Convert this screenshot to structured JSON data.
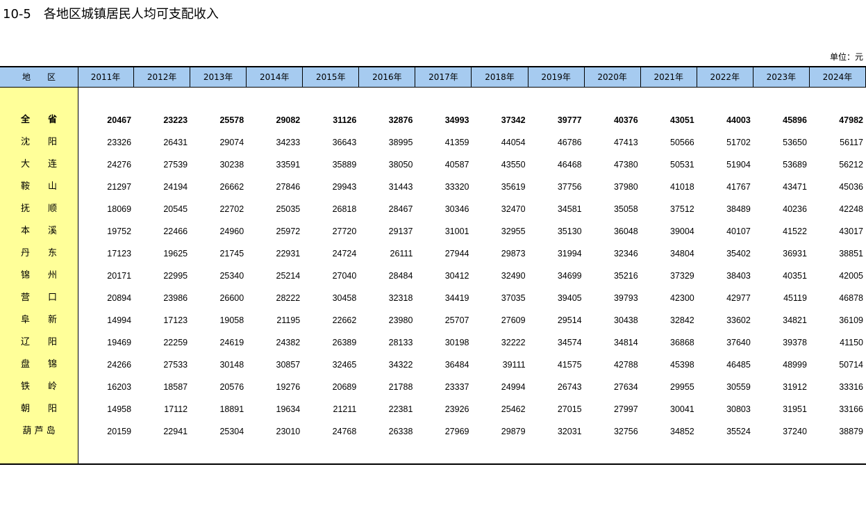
{
  "title": "10-5　各地区城镇居民人均可支配收入",
  "unit": "单位：元",
  "table": {
    "header": [
      "地　　区",
      "2011年",
      "2012年",
      "2013年",
      "2014年",
      "2015年",
      "2016年",
      "2017年",
      "2018年",
      "2019年",
      "2020年",
      "2021年",
      "2022年",
      "2023年",
      "2024年"
    ],
    "rows": [
      {
        "region": "全　　省",
        "values": [
          20467,
          23223,
          25578,
          29082,
          31126,
          32876,
          34993,
          37342,
          39777,
          40376,
          43051,
          44003,
          45896,
          47982
        ]
      },
      {
        "region": "沈　　阳",
        "values": [
          23326,
          26431,
          29074,
          34233,
          36643,
          38995,
          41359,
          44054,
          46786,
          47413,
          50566,
          51702,
          53650,
          56117
        ]
      },
      {
        "region": "大　　连",
        "values": [
          24276,
          27539,
          30238,
          33591,
          35889,
          38050,
          40587,
          43550,
          46468,
          47380,
          50531,
          51904,
          53689,
          56212
        ]
      },
      {
        "region": "鞍　　山",
        "values": [
          21297,
          24194,
          26662,
          27846,
          29943,
          31443,
          33320,
          35619,
          37756,
          37980,
          41018,
          41767,
          43471,
          45036
        ]
      },
      {
        "region": "抚　　顺",
        "values": [
          18069,
          20545,
          22702,
          25035,
          26818,
          28467,
          30346,
          32470,
          34581,
          35058,
          37512,
          38489,
          40236,
          42248
        ]
      },
      {
        "region": "本　　溪",
        "values": [
          19752,
          22466,
          24960,
          25972,
          27720,
          29137,
          31001,
          32955,
          35130,
          36048,
          39004,
          40107,
          41522,
          43017
        ]
      },
      {
        "region": "丹　　东",
        "values": [
          17123,
          19625,
          21745,
          22931,
          24724,
          26111,
          27944,
          29873,
          31994,
          32346,
          34804,
          35402,
          36931,
          38851
        ]
      },
      {
        "region": "锦　　州",
        "values": [
          20171,
          22995,
          25340,
          25214,
          27040,
          28484,
          30412,
          32490,
          34699,
          35216,
          37329,
          38403,
          40351,
          42005
        ]
      },
      {
        "region": "营　　口",
        "values": [
          20894,
          23986,
          26600,
          28222,
          30458,
          32318,
          34419,
          37035,
          39405,
          39793,
          42300,
          42977,
          45119,
          46878
        ]
      },
      {
        "region": "阜　　新",
        "values": [
          14994,
          17123,
          19058,
          21195,
          22662,
          23980,
          25707,
          27609,
          29514,
          30438,
          32842,
          33602,
          34821,
          36109
        ]
      },
      {
        "region": "辽　　阳",
        "values": [
          19469,
          22259,
          24619,
          24382,
          26389,
          28133,
          30198,
          32222,
          34574,
          34814,
          36868,
          37640,
          39378,
          41150
        ]
      },
      {
        "region": "盘　　锦",
        "values": [
          24266,
          27533,
          30148,
          30857,
          32465,
          34322,
          36484,
          39111,
          41575,
          42788,
          45398,
          46485,
          48999,
          50714
        ]
      },
      {
        "region": "铁　　岭",
        "values": [
          16203,
          18587,
          20576,
          19276,
          20689,
          21788,
          23337,
          24994,
          26743,
          27634,
          29955,
          30559,
          31912,
          33316
        ]
      },
      {
        "region": "朝　　阳",
        "values": [
          14958,
          17112,
          18891,
          19634,
          21211,
          22381,
          23926,
          25462,
          27015,
          27997,
          30041,
          30803,
          31951,
          33166
        ]
      },
      {
        "region": "葫 芦 岛",
        "values": [
          20159,
          22941,
          25304,
          23010,
          24768,
          26338,
          27969,
          29879,
          32031,
          32756,
          34852,
          35524,
          37240,
          38879
        ]
      }
    ]
  }
}
